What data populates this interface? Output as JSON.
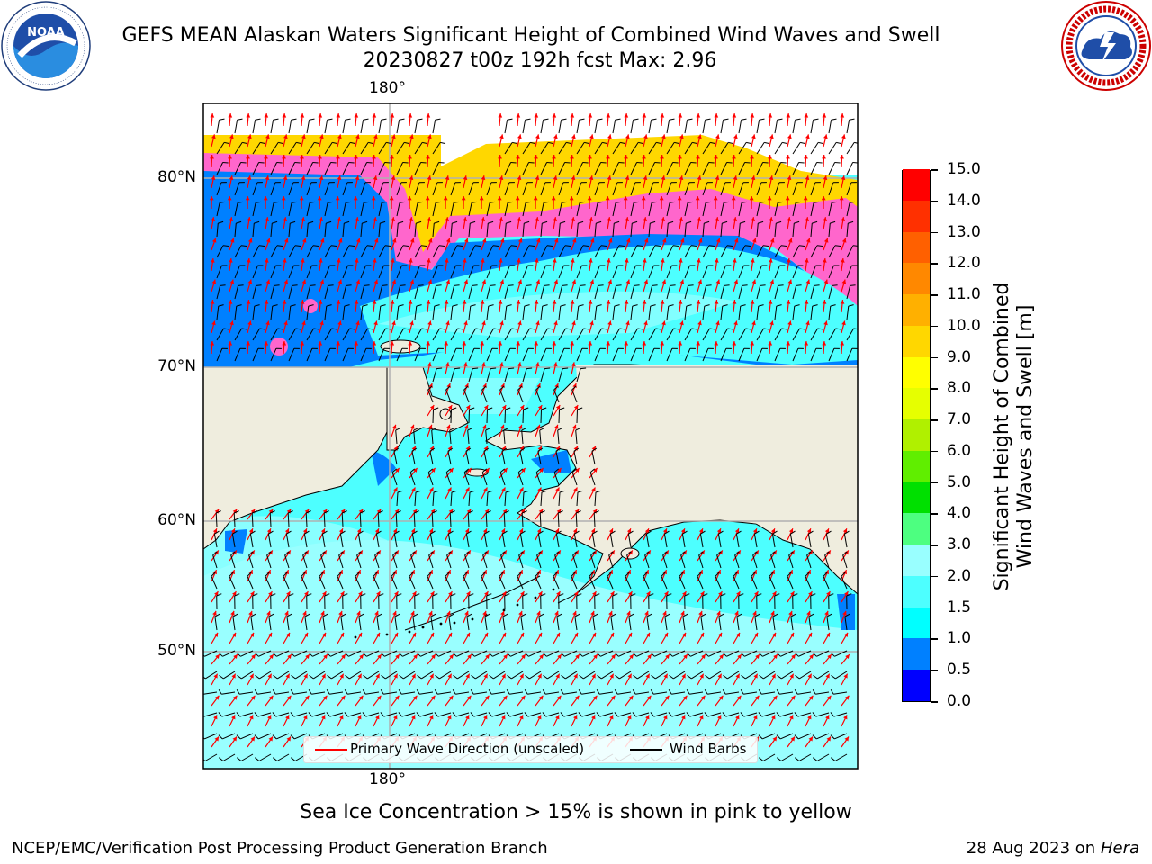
{
  "title": {
    "line1": "GEFS MEAN Alaskan Waters Significant Height of Combined Wind Waves and Swell",
    "line2": "20230827 t00z 192h fcst   Max: 2.96"
  },
  "logos": {
    "noaa": {
      "text": "NOAA",
      "ring_text": "NATIONAL OCEANIC AND ATMOSPHERIC ADMINISTRATION · U.S. DEPARTMENT OF COMMERCE"
    },
    "nws": {
      "ring_text": "NATIONAL WEATHER SERVICE"
    }
  },
  "map": {
    "lat_labels": [
      "80°N",
      "70°N",
      "60°N",
      "50°N"
    ],
    "lon_label_top": "180°",
    "lon_label_bottom": "180°"
  },
  "colorbar": {
    "title_line1": "Significant Height of Combined",
    "title_line2": "Wind Waves and Swell [m]",
    "ticks": [
      "0.0",
      "0.5",
      "1.0",
      "1.5",
      "2.0",
      "3.0",
      "4.0",
      "5.0",
      "6.0",
      "7.0",
      "8.0",
      "9.0",
      "10.0",
      "11.0",
      "12.0",
      "13.0",
      "14.0",
      "15.0"
    ],
    "colors": [
      "#0000ff",
      "#0080ff",
      "#00ffff",
      "#4dffff",
      "#99ffff",
      "#4dff80",
      "#00e000",
      "#60ee00",
      "#b0f000",
      "#e6ff00",
      "#ffff00",
      "#ffd700",
      "#ffb000",
      "#ff8800",
      "#ff6000",
      "#ff3000",
      "#ff0000"
    ]
  },
  "legend": {
    "wave_label": "Primary Wave Direction (unscaled)",
    "wave_color": "#ff0000",
    "wind_label": "Wind Barbs",
    "wind_color": "#000000"
  },
  "note": "Sea Ice Concentration > 15% is shown in pink to yellow",
  "footer": {
    "left": "NCEP/EMC/Verification Post Processing Product Generation Branch",
    "right_date": "28 Aug 2023 on",
    "right_host": "Hera"
  },
  "colors": {
    "land": "#efedde",
    "ocean_low": "#4dffff",
    "ocean_mid": "#99ffff",
    "ocean_deep": "#0080ff",
    "ice_pink": "#ff66cc",
    "ice_yellow": "#ffd700",
    "grid": "#b0b0b0"
  }
}
